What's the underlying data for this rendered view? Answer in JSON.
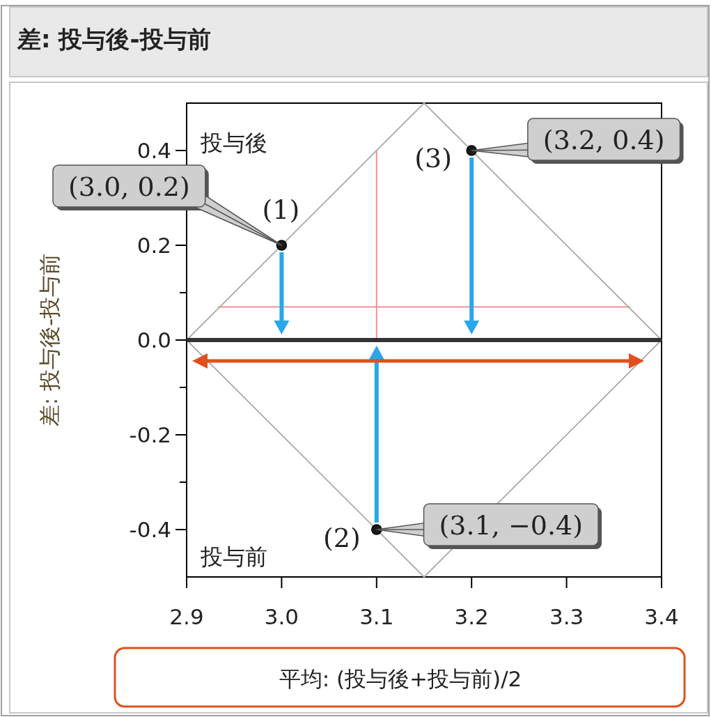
{
  "chart_data": {
    "type": "scatter",
    "title": "差: 投与後-投与前",
    "xlabel": "平均: (投与後+投与前)/2",
    "ylabel": "差: 投与後-投与前",
    "xlim": [
      2.9,
      3.4
    ],
    "xticks": [
      2.9,
      {
        "value": 3.0,
        "label": "3.0"
      },
      3.1,
      3.2,
      3.3,
      3.4
    ],
    "ylim": [
      -0.5,
      0.5
    ],
    "yticks": [
      -0.4,
      {
        "value": -0.3,
        "label": null
      },
      -0.2,
      {
        "value": -0.1,
        "label": null
      },
      {
        "value": 0,
        "label": "0.0"
      },
      {
        "value": 0.1,
        "label": null
      },
      0.2,
      {
        "value": 0.3,
        "label": null
      },
      0.4
    ],
    "grid": false,
    "marker": "circle",
    "series": [
      {
        "type": "line",
        "marker": "none",
        "color": "#b0b0b0",
        "x": [
          2.9,
          3.15,
          3.4
        ],
        "values": [
          0,
          0.5,
          0
        ]
      },
      {
        "type": "line",
        "marker": "none",
        "color": "#b0b0b0",
        "x": [
          2.9,
          3.15,
          3.4
        ],
        "values": [
          0,
          -0.5,
          0
        ]
      },
      {
        "type": "line",
        "marker": "none",
        "color": "#f0909a",
        "x": [
          2.933,
          3.367
        ],
        "values": [
          0.07,
          0.07
        ]
      },
      {
        "type": "line",
        "marker": "none",
        "color": "#f0909a",
        "x": [
          3.1,
          3.1
        ],
        "values": [
          0.4,
          0
        ]
      },
      {
        "color": "#1a1a1a",
        "x": [
          3.0,
          3.1,
          3.2
        ],
        "values": [
          0.2,
          -0.4,
          0.4
        ]
      }
    ],
    "ref_lines": [
      {
        "axis": "y",
        "value": 0,
        "color": "#333333"
      }
    ],
    "annotations": [
      {
        "text": "(3.0, 0.2)",
        "x": 3.0,
        "y": 0.2
      },
      {
        "text": "(1)",
        "x": 3.0,
        "y": 0.2
      },
      {
        "text": "(3.1, −0.4)",
        "x": 3.1,
        "y": -0.4
      },
      {
        "text": "(2)",
        "x": 3.1,
        "y": -0.4
      },
      {
        "text": "(3.2, 0.4)",
        "x": 3.2,
        "y": 0.4
      },
      {
        "text": "(3)",
        "x": 3.2,
        "y": 0.4
      },
      "投与後",
      "投与前"
    ]
  }
}
